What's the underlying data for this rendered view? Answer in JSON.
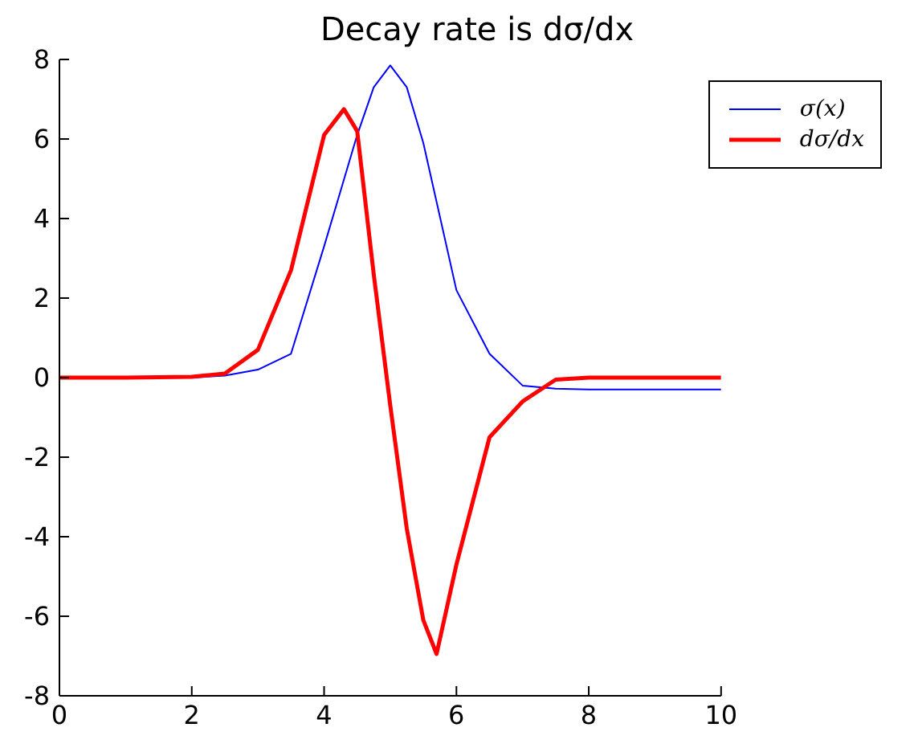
{
  "chart_data": {
    "type": "line",
    "title": "Decay rate is dσ/dx",
    "xlim": [
      0,
      10
    ],
    "xticks": [
      0,
      2,
      4,
      6,
      8,
      10
    ],
    "ylim": [
      -8,
      8
    ],
    "yticks": [
      -8,
      -6,
      -4,
      -2,
      0,
      2,
      4,
      6,
      8
    ],
    "legend": "top right",
    "grid": false,
    "series": [
      {
        "name": "σ(x)",
        "color": "#0000ff",
        "x": [
          0,
          1,
          2,
          2.5,
          3,
          3.5,
          4,
          4.5,
          4.75,
          5,
          5.25,
          5.5,
          6,
          6.5,
          7,
          7.5,
          8,
          9,
          10
        ],
        "values": [
          0,
          0,
          0,
          0.05,
          0.2,
          0.6,
          3.3,
          6.1,
          7.3,
          7.85,
          7.3,
          5.9,
          2.2,
          0.6,
          -0.2,
          -0.28,
          -0.3,
          -0.3,
          -0.3
        ]
      },
      {
        "name": "dσ/dx",
        "color": "#ff0000",
        "x": [
          0,
          1,
          2,
          2.5,
          3,
          3.5,
          4,
          4.3,
          4.5,
          4.75,
          5,
          5.25,
          5.5,
          5.7,
          6,
          6.5,
          7,
          7.5,
          8,
          9,
          10
        ],
        "values": [
          0,
          0,
          0.02,
          0.1,
          0.7,
          2.7,
          6.1,
          6.75,
          6.2,
          2.6,
          -0.7,
          -3.8,
          -6.1,
          -6.95,
          -4.7,
          -1.5,
          -0.6,
          -0.05,
          0,
          0,
          0
        ]
      }
    ]
  }
}
